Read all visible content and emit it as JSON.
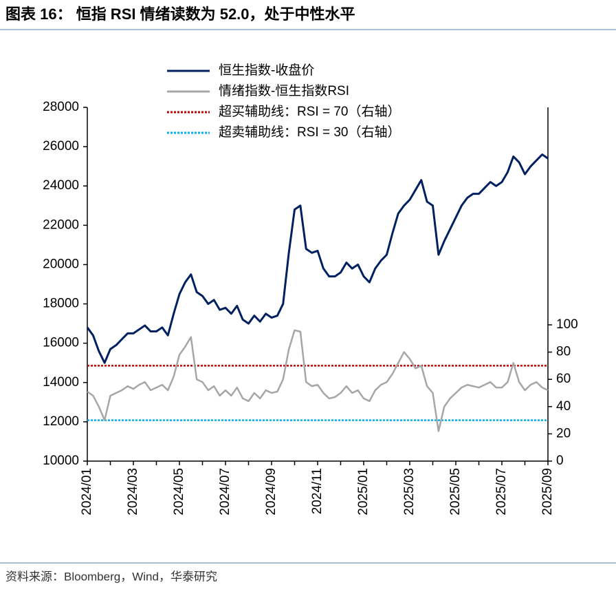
{
  "chart_data": {
    "type": "line",
    "title": "图表 16： 恒指 RSI 情绪读数为 52.0，处于中性水平",
    "source": "资料来源：Bloomberg，Wind，华泰研究",
    "categories": [
      "2024/01",
      null,
      null,
      null,
      null,
      null,
      null,
      null,
      "2024/03",
      null,
      null,
      null,
      null,
      null,
      null,
      null,
      "2024/05",
      null,
      null,
      null,
      null,
      null,
      null,
      null,
      "2024/07",
      null,
      null,
      null,
      null,
      null,
      null,
      null,
      "2024/09",
      null,
      null,
      null,
      null,
      null,
      null,
      null,
      "2024/11",
      null,
      null,
      null,
      null,
      null,
      null,
      null,
      "2025/01",
      null,
      null,
      null,
      null,
      null,
      null,
      null,
      "2025/03",
      null,
      null,
      null,
      null,
      null,
      null,
      null,
      "2025/05",
      null,
      null,
      null,
      null,
      null,
      null,
      null,
      "2025/07",
      null,
      null,
      null,
      null,
      null,
      null,
      null,
      "2025/09"
    ],
    "series": [
      {
        "name": "恒生指数-收盘价",
        "color": "#002060",
        "axis": "y",
        "values": [
          16800,
          16400,
          15600,
          15000,
          15700,
          15900,
          16200,
          16500,
          16500,
          16700,
          16900,
          16600,
          16600,
          16800,
          16400,
          17500,
          18500,
          19100,
          19500,
          18600,
          18400,
          18000,
          18200,
          17700,
          17800,
          17500,
          17900,
          17200,
          17000,
          17400,
          17100,
          17500,
          17300,
          17400,
          18000,
          20600,
          22800,
          23000,
          20800,
          20600,
          20700,
          19800,
          19400,
          19400,
          19600,
          20100,
          19800,
          20000,
          19400,
          19100,
          19800,
          20200,
          20500,
          21600,
          22600,
          23000,
          23300,
          23800,
          24300,
          23200,
          23000,
          20500,
          21200,
          21800,
          22400,
          23000,
          23400,
          23600,
          23600,
          23900,
          24200,
          24000,
          24200,
          24700,
          25500,
          25200,
          24600,
          25000,
          25300,
          25600,
          25400
        ]
      },
      {
        "name": "情绪指数-恒生指数RSI",
        "color": "#a6a6a6",
        "axis": "y2",
        "values": [
          51,
          48,
          40,
          30,
          48,
          50,
          52,
          55,
          53,
          56,
          58,
          52,
          54,
          56,
          52,
          62,
          78,
          84,
          91,
          60,
          58,
          52,
          55,
          48,
          52,
          48,
          54,
          46,
          44,
          50,
          46,
          52,
          50,
          51,
          60,
          82,
          96,
          95,
          58,
          55,
          56,
          50,
          46,
          47,
          50,
          55,
          50,
          52,
          46,
          44,
          52,
          56,
          58,
          64,
          72,
          80,
          75,
          68,
          70,
          55,
          50,
          22,
          40,
          46,
          50,
          54,
          56,
          55,
          54,
          56,
          58,
          54,
          54,
          58,
          72,
          58,
          52,
          56,
          58,
          54,
          52
        ]
      }
    ],
    "reference_lines": [
      {
        "name": "超买辅助线：RSI = 70（右轴）",
        "value": 70,
        "color": "#c00000",
        "axis": "y2"
      },
      {
        "name": "超卖辅助线：RSI = 30（右轴）",
        "value": 30,
        "color": "#00b0f0",
        "axis": "y2"
      }
    ],
    "ylim": [
      10000,
      28000
    ],
    "yticks": [
      10000,
      12000,
      14000,
      16000,
      18000,
      20000,
      22000,
      24000,
      26000,
      28000
    ],
    "y2lim": [
      0,
      259.6
    ],
    "y2ticks": [
      0,
      20,
      40,
      60,
      80,
      100
    ]
  }
}
